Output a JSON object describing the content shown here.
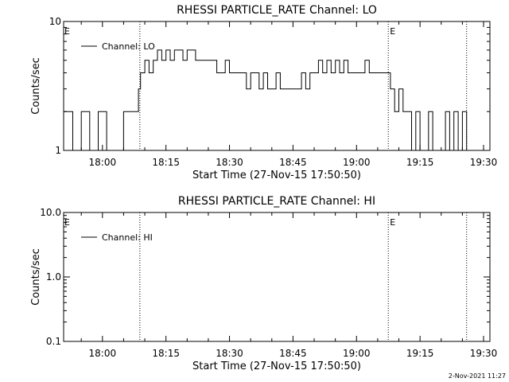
{
  "footer_stamp": "2-Nov-2021 11:27",
  "chart_data": [
    {
      "type": "line",
      "title": "RHESSI PARTICLE_RATE Channel: LO",
      "xlabel": "Start Time (27-Nov-15 17:50:50)",
      "ylabel": "Counts/sec",
      "yscale": "log",
      "ylim": [
        1,
        10
      ],
      "xlim": [
        "17:50:50",
        "19:31:30"
      ],
      "x_ticks": [
        "18:00",
        "18:15",
        "18:30",
        "18:45",
        "19:00",
        "19:15",
        "19:30"
      ],
      "y_ticks": [
        "1",
        "10"
      ],
      "legend": {
        "position": "top-left",
        "entries": [
          "Channel: LO"
        ]
      },
      "event_markers": [
        {
          "time": "18:08:50",
          "label": ""
        },
        {
          "time": "19:07:30",
          "label": "E"
        },
        {
          "time": "19:26:00",
          "label": ""
        }
      ],
      "left_marker_label": "E",
      "series": [
        {
          "name": "Channel: LO",
          "x": [
            "17:51:00",
            "17:53:00",
            "17:55:00",
            "17:57:00",
            "17:59:00",
            "18:01:00",
            "18:03:00",
            "18:05:00",
            "18:07:00",
            "18:08:30",
            "18:09:00",
            "18:10:00",
            "18:11:00",
            "18:12:00",
            "18:13:00",
            "18:14:00",
            "18:15:00",
            "18:16:00",
            "18:17:00",
            "18:18:00",
            "18:19:00",
            "18:20:00",
            "18:21:00",
            "18:22:00",
            "18:23:00",
            "18:24:00",
            "18:25:00",
            "18:26:00",
            "18:27:00",
            "18:28:00",
            "18:29:00",
            "18:30:00",
            "18:31:00",
            "18:32:00",
            "18:33:00",
            "18:34:00",
            "18:35:00",
            "18:36:00",
            "18:37:00",
            "18:38:00",
            "18:39:00",
            "18:40:00",
            "18:41:00",
            "18:42:00",
            "18:43:00",
            "18:44:00",
            "18:45:00",
            "18:46:00",
            "18:47:00",
            "18:48:00",
            "18:49:00",
            "18:50:00",
            "18:51:00",
            "18:52:00",
            "18:53:00",
            "18:54:00",
            "18:55:00",
            "18:56:00",
            "18:57:00",
            "18:58:00",
            "18:59:00",
            "19:00:00",
            "19:01:00",
            "19:02:00",
            "19:03:00",
            "19:04:00",
            "19:05:00",
            "19:06:00",
            "19:07:00",
            "19:08:00",
            "19:09:00",
            "19:10:00",
            "19:11:00",
            "19:12:00",
            "19:13:00",
            "19:14:00",
            "19:15:00",
            "19:16:00",
            "19:17:00",
            "19:18:00",
            "19:19:00",
            "19:20:00",
            "19:21:00",
            "19:22:00",
            "19:23:00",
            "19:24:00",
            "19:25:00",
            "19:26:00"
          ],
          "y": [
            2,
            1,
            2,
            1,
            2,
            1,
            1,
            2,
            2,
            3,
            4,
            5,
            4,
            5,
            6,
            5,
            6,
            5,
            6,
            6,
            5,
            6,
            6,
            5,
            5,
            5,
            5,
            5,
            4,
            4,
            5,
            4,
            4,
            4,
            4,
            3,
            4,
            4,
            3,
            4,
            3,
            3,
            4,
            3,
            3,
            3,
            3,
            3,
            4,
            3,
            4,
            4,
            5,
            4,
            5,
            4,
            5,
            4,
            5,
            4,
            4,
            4,
            4,
            5,
            4,
            4,
            4,
            4,
            4,
            3,
            2,
            3,
            2,
            2,
            1,
            2,
            1,
            1,
            2,
            1,
            1,
            1,
            2,
            1,
            2,
            1,
            2,
            1
          ]
        }
      ]
    },
    {
      "type": "line",
      "title": "RHESSI PARTICLE_RATE Channel: HI",
      "xlabel": "Start Time (27-Nov-15 17:50:50)",
      "ylabel": "Counts/sec",
      "yscale": "log",
      "ylim": [
        0.1,
        10
      ],
      "xlim": [
        "17:50:50",
        "19:31:30"
      ],
      "x_ticks": [
        "18:00",
        "18:15",
        "18:30",
        "18:45",
        "19:00",
        "19:15",
        "19:30"
      ],
      "y_ticks": [
        "0.1",
        "1.0",
        "10.0"
      ],
      "legend": {
        "position": "top-left",
        "entries": [
          "Channel: HI"
        ]
      },
      "event_markers": [
        {
          "time": "18:08:50",
          "label": ""
        },
        {
          "time": "19:07:30",
          "label": "E"
        },
        {
          "time": "19:26:00",
          "label": ""
        }
      ],
      "left_marker_label": "E",
      "series": [
        {
          "name": "Channel: HI",
          "x": [],
          "y": []
        }
      ]
    }
  ]
}
